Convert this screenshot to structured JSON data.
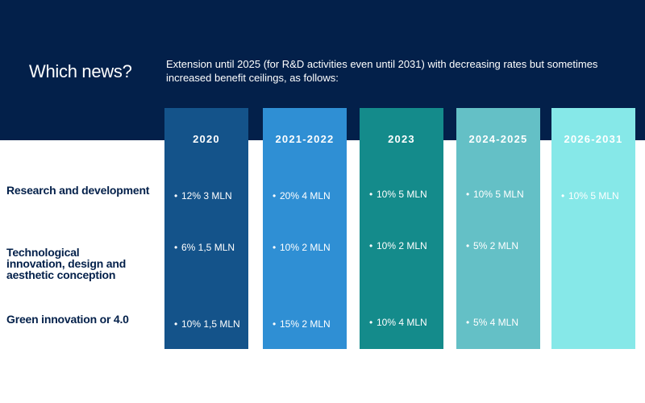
{
  "heading": "Which news?",
  "intro": "Extension until 2025 (for R&D activities even until 2031) with decreasing rates but sometimes increased benefit ceilings, as follows:",
  "rows": [
    {
      "label": "Research and development"
    },
    {
      "label": "Technological innovation, design and aesthetic conception"
    },
    {
      "label": "Green innovation or 4.0"
    }
  ],
  "columns": [
    {
      "year": "2020",
      "color": "#14538a",
      "cells": [
        "12% 3 MLN",
        "6% 1,5 MLN",
        "10% 1,5 MLN"
      ]
    },
    {
      "year": "2021-2022",
      "color": "#2f8fd4",
      "cells": [
        "20% 4 MLN",
        "10% 2 MLN",
        "15% 2 MLN"
      ]
    },
    {
      "year": "2023",
      "color": "#148b8b",
      "cells": [
        "10% 5 MLN",
        "10% 2 MLN",
        "10% 4 MLN"
      ]
    },
    {
      "year": "2024-2025",
      "color": "#64c0c6",
      "cells": [
        "10% 5 MLN",
        "5% 2 MLN",
        "5% 4 MLN"
      ]
    },
    {
      "year": "2026-2031",
      "color": "#86e8e8",
      "cells": [
        "10% 5 MLN",
        "",
        ""
      ]
    }
  ]
}
